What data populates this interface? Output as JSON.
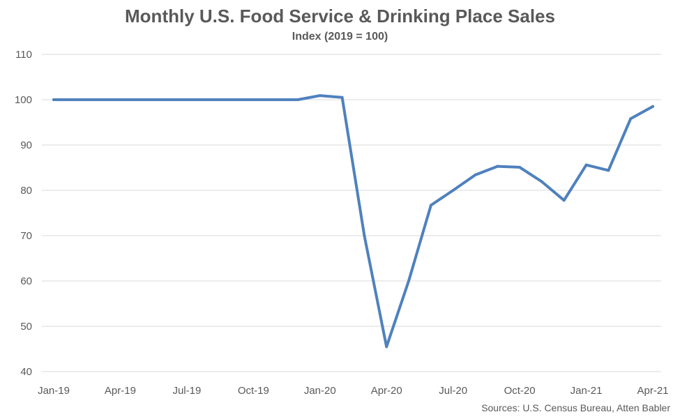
{
  "chart_data": {
    "type": "line",
    "title": "Monthly U.S. Food Service & Drinking Place Sales",
    "subtitle": "Index (2019 = 100)",
    "xlabel": "",
    "ylabel": "",
    "ylim": [
      40,
      110
    ],
    "yticks": [
      40,
      50,
      60,
      70,
      80,
      90,
      100,
      110
    ],
    "x": [
      "Jan-19",
      "Feb-19",
      "Mar-19",
      "Apr-19",
      "May-19",
      "Jun-19",
      "Jul-19",
      "Aug-19",
      "Sep-19",
      "Oct-19",
      "Nov-19",
      "Dec-19",
      "Jan-20",
      "Feb-20",
      "Mar-20",
      "Apr-20",
      "May-20",
      "Jun-20",
      "Jul-20",
      "Aug-20",
      "Sep-20",
      "Oct-20",
      "Nov-20",
      "Dec-20",
      "Jan-21",
      "Feb-21",
      "Mar-21",
      "Apr-21"
    ],
    "xtick_labels": [
      "Jan-19",
      "Apr-19",
      "Jul-19",
      "Oct-19",
      "Jan-20",
      "Apr-20",
      "Jul-20",
      "Oct-20",
      "Jan-21",
      "Apr-21"
    ],
    "series": [
      {
        "name": "",
        "color": "#4F81BD",
        "values": [
          100,
          100,
          100,
          100,
          100,
          100,
          100,
          100,
          100,
          100,
          100,
          100,
          100.9,
          100.5,
          70,
          45.5,
          60,
          76.7,
          80,
          83.4,
          85.3,
          85.1,
          81.9,
          77.8,
          85.6,
          84.4,
          95.8,
          98.5
        ]
      }
    ],
    "grid": true,
    "legend": "none",
    "source": "Sources: U.S. Census Bureau, Atten Babler"
  }
}
